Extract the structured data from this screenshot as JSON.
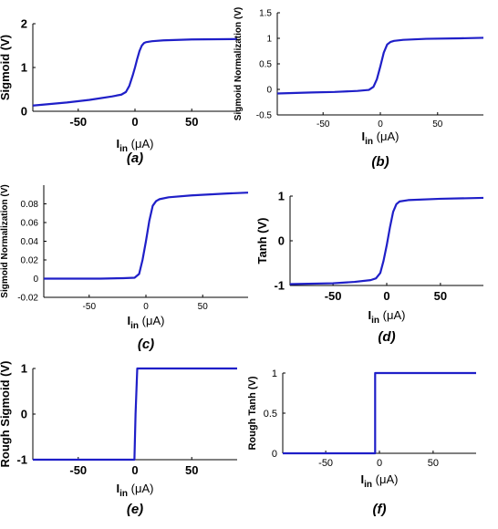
{
  "chart_data": [
    {
      "id": "a",
      "type": "line",
      "panel_label": "(a)",
      "ylabel": "Sigmoid (V)",
      "xlabel_main": "I",
      "xlabel_sub": "in",
      "xlabel_unit": " (μA)",
      "xlim": [
        -90,
        90
      ],
      "ylim": [
        0,
        2
      ],
      "xticks": [
        -50,
        0,
        50
      ],
      "yticks": [
        0,
        1,
        2
      ],
      "series": [
        {
          "color": "#1f1fc8",
          "x": [
            -90,
            -60,
            -40,
            -20,
            -12,
            -8,
            -5,
            -2,
            0,
            2,
            4,
            6,
            8,
            10,
            15,
            25,
            50,
            90
          ],
          "y": [
            0.13,
            0.2,
            0.26,
            0.34,
            0.38,
            0.44,
            0.58,
            0.82,
            1.0,
            1.2,
            1.38,
            1.5,
            1.56,
            1.58,
            1.6,
            1.62,
            1.64,
            1.65
          ]
        }
      ]
    },
    {
      "id": "b",
      "type": "line",
      "panel_label": "(b)",
      "ylabel": "Sigmoid Normalization (V)",
      "xlabel_main": "I",
      "xlabel_sub": "in",
      "xlabel_unit": " (μA)",
      "xlim": [
        -90,
        90
      ],
      "ylim": [
        -0.5,
        1.5
      ],
      "xticks": [
        -50,
        0,
        50
      ],
      "yticks": [
        -0.5,
        0,
        0.5,
        1,
        1.5
      ],
      "series": [
        {
          "color": "#1f1fc8",
          "x": [
            -90,
            -60,
            -40,
            -20,
            -10,
            -6,
            -3,
            0,
            3,
            6,
            9,
            12,
            20,
            40,
            70,
            90
          ],
          "y": [
            -0.08,
            -0.06,
            -0.05,
            -0.03,
            -0.01,
            0.05,
            0.2,
            0.45,
            0.72,
            0.88,
            0.93,
            0.95,
            0.97,
            0.99,
            1.0,
            1.01
          ]
        }
      ]
    },
    {
      "id": "c",
      "type": "line",
      "panel_label": "(c)",
      "ylabel": "Sigmoid Normalization (V)",
      "xlabel_main": "I",
      "xlabel_sub": "in",
      "xlabel_unit": " (μA)",
      "xlim": [
        -90,
        90
      ],
      "ylim": [
        -0.02,
        0.1
      ],
      "xticks": [
        -50,
        0,
        50
      ],
      "yticks": [
        -0.02,
        0,
        0.02,
        0.04,
        0.06,
        0.08
      ],
      "ytick_labels": [
        "-0.02",
        "0",
        "0.02",
        "0.04",
        "0.06",
        "0.08"
      ],
      "series": [
        {
          "color": "#1f1fc8",
          "x": [
            -90,
            -40,
            -20,
            -10,
            -6,
            -3,
            0,
            3,
            6,
            9,
            12,
            20,
            40,
            70,
            90
          ],
          "y": [
            0.0,
            0.0,
            0.0005,
            0.001,
            0.005,
            0.02,
            0.04,
            0.062,
            0.078,
            0.083,
            0.085,
            0.087,
            0.089,
            0.091,
            0.092
          ]
        }
      ]
    },
    {
      "id": "d",
      "type": "line",
      "panel_label": "(d)",
      "ylabel": "Tanh (V)",
      "xlabel_main": "I",
      "xlabel_sub": "in",
      "xlabel_unit": " (μA)",
      "xlim": [
        -90,
        90
      ],
      "ylim": [
        -1,
        1
      ],
      "xticks": [
        -50,
        0,
        50
      ],
      "yticks": [
        -1,
        0,
        1
      ],
      "series": [
        {
          "color": "#1f1fc8",
          "x": [
            -90,
            -50,
            -30,
            -15,
            -10,
            -6,
            -3,
            0,
            3,
            6,
            9,
            12,
            20,
            50,
            90
          ],
          "y": [
            -0.97,
            -0.95,
            -0.92,
            -0.88,
            -0.84,
            -0.72,
            -0.45,
            -0.1,
            0.3,
            0.65,
            0.82,
            0.88,
            0.91,
            0.94,
            0.96
          ]
        }
      ]
    },
    {
      "id": "e",
      "type": "line",
      "panel_label": "(e)",
      "ylabel": "Rough Sigmoid (V)",
      "xlabel_main": "I",
      "xlabel_sub": "in",
      "xlabel_unit": " (μA)",
      "xlim": [
        -90,
        90
      ],
      "ylim": [
        -1,
        1
      ],
      "xticks": [
        -50,
        0,
        50
      ],
      "yticks": [
        -1,
        0,
        1
      ],
      "series": [
        {
          "color": "#1f1fc8",
          "x": [
            -90,
            -0.5,
            0.5,
            2,
            90
          ],
          "y": [
            -1,
            -1,
            0.0,
            1,
            1
          ]
        }
      ]
    },
    {
      "id": "f",
      "type": "line",
      "panel_label": "(f)",
      "ylabel": "Rough Tanh (V)",
      "xlabel_main": "I",
      "xlabel_sub": "in",
      "xlabel_unit": " (μA)",
      "xlim": [
        -90,
        90
      ],
      "ylim": [
        0,
        1
      ],
      "xticks": [
        -50,
        0,
        50
      ],
      "yticks": [
        0,
        0.5,
        1
      ],
      "series": [
        {
          "color": "#1f1fc8",
          "x": [
            -90,
            -4,
            -4,
            90
          ],
          "y": [
            0,
            0,
            1,
            1
          ]
        }
      ]
    }
  ]
}
